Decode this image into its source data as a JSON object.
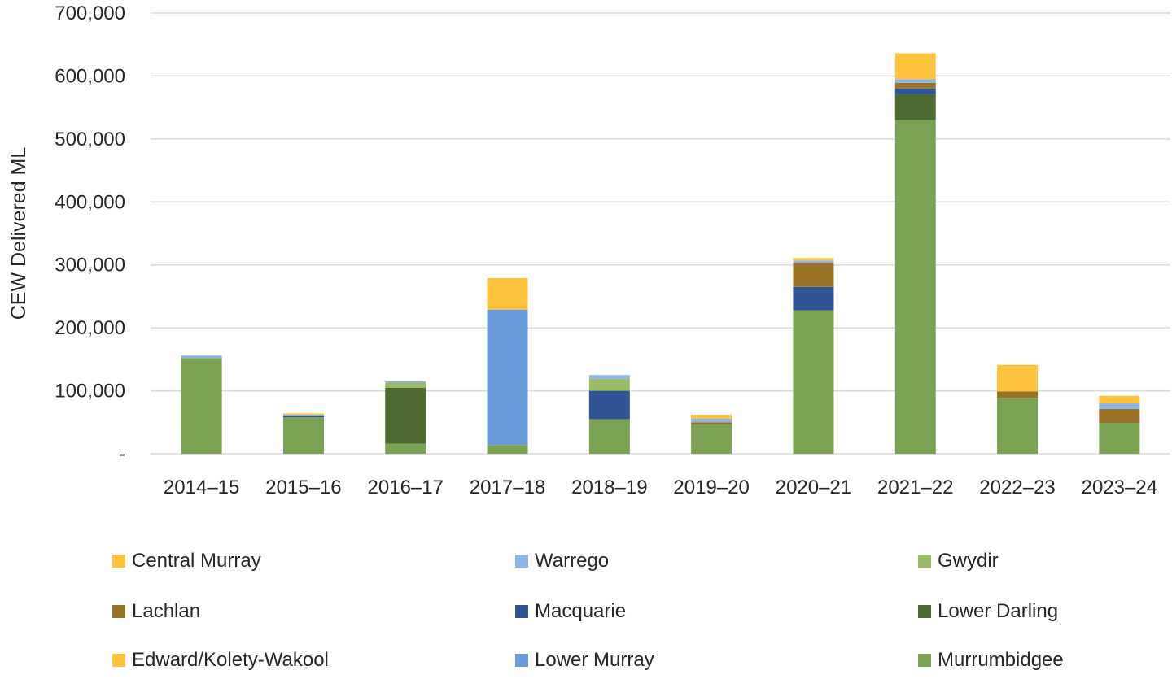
{
  "chart_data": {
    "type": "bar",
    "stacked": true,
    "title": "",
    "xlabel": "",
    "ylabel": "CEW Delivered ML",
    "ylim": [
      0,
      700000
    ],
    "yticks": [
      0,
      100000,
      200000,
      300000,
      400000,
      500000,
      600000,
      700000
    ],
    "ytick_labels": [
      "-",
      "100,000",
      "200,000",
      "300,000",
      "400,000",
      "500,000",
      "600,000",
      "700,000"
    ],
    "grid": true,
    "legend_position": "bottom",
    "categories": [
      "2014–15",
      "2015–16",
      "2016–17",
      "2017–18",
      "2018–19",
      "2019–20",
      "2020–21",
      "2021–22",
      "2022–23",
      "2023–24"
    ],
    "series": [
      {
        "name": "Murrumbidgee",
        "color": "#7BA153",
        "values": [
          152000,
          58000,
          16000,
          14000,
          55000,
          46000,
          228000,
          530000,
          89000,
          49000
        ]
      },
      {
        "name": "Lower Murray",
        "color": "#6C9BDB",
        "values": [
          0,
          0,
          0,
          215000,
          0,
          0,
          0,
          0,
          0,
          0
        ]
      },
      {
        "name": "Edward/Kolety-Wakool",
        "color": "#FFC43D",
        "values": [
          0,
          0,
          0,
          0,
          0,
          0,
          0,
          0,
          0,
          0
        ]
      },
      {
        "name": "Lower Darling",
        "color": "#4E6A31",
        "values": [
          0,
          0,
          89000,
          0,
          0,
          0,
          0,
          41000,
          0,
          0
        ]
      },
      {
        "name": "Macquarie",
        "color": "#2F5597",
        "values": [
          0,
          2000,
          0,
          0,
          45000,
          0,
          37000,
          9000,
          0,
          0
        ]
      },
      {
        "name": "Lachlan",
        "color": "#9A7228",
        "values": [
          0,
          0,
          0,
          0,
          0,
          4000,
          38000,
          9000,
          10000,
          22000
        ]
      },
      {
        "name": "Gwydir",
        "color": "#9BBB6B",
        "values": [
          0,
          0,
          8000,
          0,
          19000,
          0,
          0,
          0,
          0,
          0
        ]
      },
      {
        "name": "Warrego",
        "color": "#8EB4E3",
        "values": [
          4000,
          2000,
          2000,
          0,
          6000,
          6000,
          4000,
          6000,
          0,
          9000
        ]
      },
      {
        "name": "Central Murray",
        "color": "#FFC43D",
        "values": [
          0,
          2000,
          0,
          50000,
          0,
          6000,
          4000,
          41000,
          42000,
          12000
        ]
      }
    ]
  }
}
